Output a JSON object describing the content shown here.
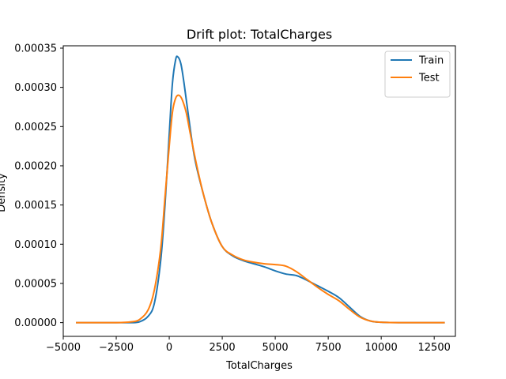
{
  "chart_data": {
    "type": "line",
    "title": "Drift plot: TotalCharges",
    "xlabel": "TotalCharges",
    "ylabel": "Density",
    "xlim": [
      -5000,
      13500
    ],
    "ylim": [
      -1.75e-05,
      0.000353
    ],
    "xticks": [
      -5000,
      -2500,
      0,
      2500,
      5000,
      7500,
      10000,
      12500
    ],
    "xtick_labels": [
      "−5000",
      "−2500",
      "0",
      "2500",
      "5000",
      "7500",
      "10000",
      "12500"
    ],
    "yticks": [
      0,
      5e-05,
      0.0001,
      0.00015,
      0.0002,
      0.00025,
      0.0003,
      0.00035
    ],
    "ytick_labels": [
      "0.00000",
      "0.00005",
      "0.00010",
      "0.00015",
      "0.00020",
      "0.00025",
      "0.00030",
      "0.00035"
    ],
    "grid": false,
    "legend_position": "top-right",
    "series": [
      {
        "name": "Train",
        "color": "#1f77b4",
        "points": [
          [
            -4400,
            0
          ],
          [
            -2500,
            0
          ],
          [
            -1800,
            0
          ],
          [
            -1400,
            1e-06
          ],
          [
            -1000,
            8e-06
          ],
          [
            -700,
            2.5e-05
          ],
          [
            -400,
            8e-05
          ],
          [
            -200,
            0.00015
          ],
          [
            0,
            0.00024
          ],
          [
            150,
            0.000305
          ],
          [
            300,
            0.000335
          ],
          [
            400,
            0.000339
          ],
          [
            550,
            0.00033
          ],
          [
            700,
            0.000305
          ],
          [
            900,
            0.000265
          ],
          [
            1200,
            0.00021
          ],
          [
            1600,
            0.000165
          ],
          [
            2000,
            0.000128
          ],
          [
            2500,
            9.7e-05
          ],
          [
            3000,
            8.5e-05
          ],
          [
            3500,
            7.9e-05
          ],
          [
            4000,
            7.5e-05
          ],
          [
            4500,
            7.1e-05
          ],
          [
            5000,
            6.6e-05
          ],
          [
            5500,
            6.2e-05
          ],
          [
            6000,
            6e-05
          ],
          [
            6500,
            5.4e-05
          ],
          [
            7000,
            4.7e-05
          ],
          [
            7500,
            4e-05
          ],
          [
            8000,
            3.2e-05
          ],
          [
            8500,
            2e-05
          ],
          [
            9000,
            8e-06
          ],
          [
            9500,
            2e-06
          ],
          [
            10000,
            5e-07
          ],
          [
            11000,
            0
          ],
          [
            13000,
            0
          ]
        ]
      },
      {
        "name": "Test",
        "color": "#ff7f0e",
        "points": [
          [
            -4400,
            0
          ],
          [
            -2500,
            0
          ],
          [
            -1800,
            1e-06
          ],
          [
            -1400,
            4e-06
          ],
          [
            -1000,
            1.6e-05
          ],
          [
            -700,
            4.2e-05
          ],
          [
            -400,
            9.5e-05
          ],
          [
            -200,
            0.00016
          ],
          [
            0,
            0.000225
          ],
          [
            150,
            0.000268
          ],
          [
            300,
            0.000286
          ],
          [
            450,
            0.00029
          ],
          [
            600,
            0.000285
          ],
          [
            800,
            0.000268
          ],
          [
            1000,
            0.00024
          ],
          [
            1300,
            0.0002
          ],
          [
            1600,
            0.000165
          ],
          [
            2000,
            0.000128
          ],
          [
            2500,
            9.7e-05
          ],
          [
            3000,
            8.6e-05
          ],
          [
            3500,
            8e-05
          ],
          [
            4000,
            7.7e-05
          ],
          [
            4500,
            7.5e-05
          ],
          [
            5000,
            7.4e-05
          ],
          [
            5500,
            7.2e-05
          ],
          [
            6000,
            6.5e-05
          ],
          [
            6500,
            5.5e-05
          ],
          [
            7000,
            4.5e-05
          ],
          [
            7500,
            3.6e-05
          ],
          [
            8000,
            2.8e-05
          ],
          [
            8500,
            1.7e-05
          ],
          [
            9000,
            7e-06
          ],
          [
            9500,
            2e-06
          ],
          [
            10000,
            5e-07
          ],
          [
            11000,
            0
          ],
          [
            13000,
            0
          ]
        ]
      }
    ]
  }
}
